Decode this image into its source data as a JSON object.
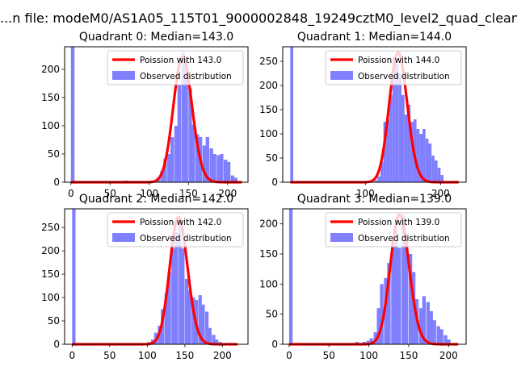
{
  "figure_title": "...n file: modeM0/AS1A05_115T01_9000002848_19249cztM0_level2_quad_clean.evt",
  "colors": {
    "hist": "#8080ff",
    "fit": "#ff0000"
  },
  "chart_data": [
    {
      "type": "bar",
      "title": "Quadrant 0: Median=143.0",
      "xlabel": "",
      "ylabel": "",
      "xlim": [
        -8,
        226
      ],
      "ylim": [
        0,
        240
      ],
      "xticks": [
        0,
        50,
        100,
        150,
        200
      ],
      "yticks": [
        0,
        50,
        100,
        150,
        200
      ],
      "legend": {
        "placement": "upper right",
        "entries": [
          "Poission with 143.0",
          "Observed distribution"
        ]
      },
      "histogram": {
        "name": "Observed distribution",
        "bin_width": 4.55,
        "bins": [
          [
            0,
            240
          ],
          [
            68,
            3
          ],
          [
            72,
            2
          ],
          [
            77,
            1
          ],
          [
            82,
            1
          ],
          [
            100,
            2
          ],
          [
            104,
            2
          ],
          [
            109,
            8
          ],
          [
            114,
            20
          ],
          [
            118,
            42
          ],
          [
            123,
            50
          ],
          [
            127,
            80
          ],
          [
            132,
            100
          ],
          [
            136,
            172
          ],
          [
            141,
            230
          ],
          [
            145,
            200
          ],
          [
            150,
            166
          ],
          [
            154,
            102
          ],
          [
            159,
            85
          ],
          [
            163,
            80
          ],
          [
            168,
            65
          ],
          [
            172,
            80
          ],
          [
            177,
            60
          ],
          [
            181,
            50
          ],
          [
            186,
            48
          ],
          [
            190,
            50
          ],
          [
            195,
            40
          ],
          [
            199,
            36
          ],
          [
            204,
            12
          ],
          [
            208,
            8
          ]
        ]
      },
      "fit": {
        "name": "Poission with 143.0",
        "mean": 143.0,
        "peak": 222,
        "x_range": [
          0,
          218
        ]
      }
    },
    {
      "type": "bar",
      "title": "Quadrant 1: Median=144.0",
      "xlabel": "",
      "ylabel": "",
      "xlim": [
        -10,
        234
      ],
      "ylim": [
        0,
        280
      ],
      "xticks": [
        100,
        200
      ],
      "yticks": [
        0,
        50,
        100,
        150,
        200,
        250
      ],
      "legend": {
        "placement": "upper right",
        "entries": [
          "Poission with 144.0",
          "Observed distribution"
        ]
      },
      "histogram": {
        "name": "Observed distribution",
        "bin_width": 4.0,
        "bins": [
          [
            0,
            280
          ],
          [
            112,
            4
          ],
          [
            116,
            12
          ],
          [
            120,
            42
          ],
          [
            124,
            125
          ],
          [
            128,
            130
          ],
          [
            132,
            180
          ],
          [
            136,
            260
          ],
          [
            140,
            245
          ],
          [
            144,
            225
          ],
          [
            148,
            180
          ],
          [
            152,
            140
          ],
          [
            156,
            160
          ],
          [
            160,
            125
          ],
          [
            164,
            130
          ],
          [
            168,
            110
          ],
          [
            172,
            100
          ],
          [
            176,
            110
          ],
          [
            180,
            90
          ],
          [
            184,
            80
          ],
          [
            188,
            55
          ],
          [
            192,
            45
          ],
          [
            196,
            30
          ],
          [
            200,
            15
          ]
        ]
      },
      "fit": {
        "name": "Poission with 144.0",
        "mean": 144.0,
        "peak": 268,
        "x_range": [
          0,
          224
        ]
      }
    },
    {
      "type": "bar",
      "title": "Quadrant 2: Median=142.0",
      "xlabel": "",
      "ylabel": "",
      "xlim": [
        -10,
        234
      ],
      "ylim": [
        0,
        290
      ],
      "xticks": [
        0,
        50,
        100,
        150,
        200
      ],
      "yticks": [
        0,
        50,
        100,
        150,
        200,
        250
      ],
      "legend": {
        "placement": "upper right",
        "entries": [
          "Poission with 142.0",
          "Observed distribution"
        ]
      },
      "histogram": {
        "name": "Observed distribution",
        "bin_width": 4.55,
        "bins": [
          [
            0,
            290
          ],
          [
            100,
            5
          ],
          [
            105,
            10
          ],
          [
            109,
            25
          ],
          [
            114,
            40
          ],
          [
            118,
            75
          ],
          [
            123,
            110
          ],
          [
            127,
            155
          ],
          [
            132,
            205
          ],
          [
            136,
            240
          ],
          [
            141,
            270
          ],
          [
            145,
            205
          ],
          [
            150,
            140
          ],
          [
            154,
            115
          ],
          [
            159,
            100
          ],
          [
            163,
            95
          ],
          [
            168,
            105
          ],
          [
            172,
            85
          ],
          [
            177,
            70
          ],
          [
            181,
            35
          ],
          [
            186,
            20
          ],
          [
            190,
            10
          ],
          [
            195,
            5
          ]
        ]
      },
      "fit": {
        "name": "Poission with 142.0",
        "mean": 142.0,
        "peak": 272,
        "x_range": [
          0,
          220
        ]
      }
    },
    {
      "type": "bar",
      "title": "Quadrant 3: Median=139.0",
      "xlabel": "",
      "ylabel": "",
      "xlim": [
        -8,
        222
      ],
      "ylim": [
        0,
        225
      ],
      "xticks": [
        0,
        50,
        100,
        150,
        200
      ],
      "yticks": [
        0,
        50,
        100,
        150,
        200
      ],
      "legend": {
        "placement": "upper right",
        "entries": [
          "Poission with 139.0",
          "Observed distribution"
        ]
      },
      "histogram": {
        "name": "Observed distribution",
        "bin_width": 4.4,
        "bins": [
          [
            0,
            225
          ],
          [
            83,
            4
          ],
          [
            88,
            2
          ],
          [
            92,
            4
          ],
          [
            97,
            6
          ],
          [
            101,
            10
          ],
          [
            106,
            20
          ],
          [
            110,
            60
          ],
          [
            114,
            100
          ],
          [
            119,
            110
          ],
          [
            123,
            135
          ],
          [
            128,
            170
          ],
          [
            132,
            190
          ],
          [
            136,
            160
          ],
          [
            141,
            215
          ],
          [
            145,
            180
          ],
          [
            150,
            150
          ],
          [
            154,
            120
          ],
          [
            158,
            75
          ],
          [
            163,
            60
          ],
          [
            167,
            80
          ],
          [
            172,
            70
          ],
          [
            176,
            55
          ],
          [
            180,
            40
          ],
          [
            185,
            30
          ],
          [
            189,
            25
          ],
          [
            194,
            15
          ],
          [
            198,
            8
          ]
        ]
      },
      "fit": {
        "name": "Poission with 139.0",
        "mean": 139.0,
        "peak": 215,
        "x_range": [
          0,
          212
        ]
      }
    }
  ]
}
